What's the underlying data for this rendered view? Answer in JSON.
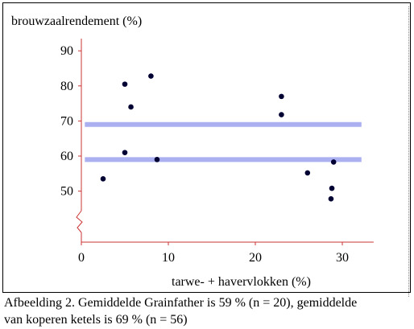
{
  "chart_data": {
    "type": "scatter",
    "ylabel": "brouwzaalrendement (%)",
    "xlabel": "tarwe- + havervlokken (%)",
    "xlim": [
      0,
      32
    ],
    "ylim": [
      43,
      93
    ],
    "x_ticks": [
      "0",
      "10",
      "20",
      "30"
    ],
    "y_ticks": [
      "90",
      "80",
      "70",
      "60",
      "50"
    ],
    "axis_break": true,
    "grid": false,
    "points": [
      {
        "x": 2.5,
        "y": 53.5
      },
      {
        "x": 5.0,
        "y": 80.5
      },
      {
        "x": 5.0,
        "y": 61.0
      },
      {
        "x": 5.7,
        "y": 74.0
      },
      {
        "x": 8.0,
        "y": 82.8
      },
      {
        "x": 8.7,
        "y": 59.0
      },
      {
        "x": 23.0,
        "y": 77.0
      },
      {
        "x": 23.0,
        "y": 71.8
      },
      {
        "x": 26.0,
        "y": 55.2
      },
      {
        "x": 28.8,
        "y": 50.8
      },
      {
        "x": 28.7,
        "y": 47.8
      },
      {
        "x": 29.0,
        "y": 58.3
      }
    ],
    "reference_lines": [
      {
        "y": 69,
        "color": "#aab0f0"
      },
      {
        "y": 59,
        "color": "#aab0f0"
      }
    ],
    "colors": {
      "points": "#000033",
      "axes": "#cc3333",
      "reference": "#aab0f0"
    }
  },
  "caption": {
    "line1": "Afbeelding 2.  Gemiddelde Grainfather is 59 % (n = 20), gemiddelde",
    "line2": "van koperen ketels is 69 % (n = 56)"
  }
}
